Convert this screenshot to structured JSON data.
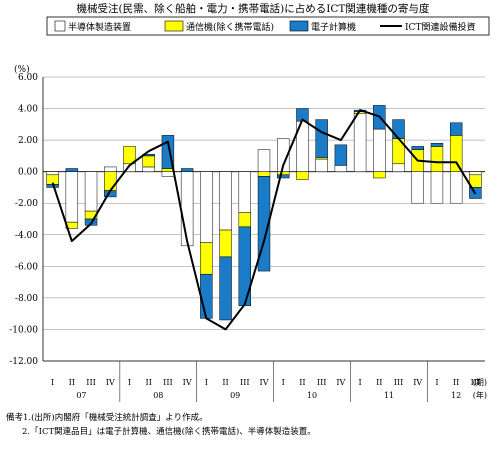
{
  "chart_data": {
    "type": "bar",
    "title": "機械受注(民需、除く船舶・電力・携帯電話)に占めるICT関連機種の寄与度",
    "ylabel": "(%)",
    "xlabel_period": "(期)",
    "xlabel_year": "(年)",
    "ylim": [
      -12,
      6
    ],
    "yticks": [
      "6.00",
      "4.00",
      "2.00",
      "0.00",
      "-2.00",
      "-4.00",
      "-6.00",
      "-8.00",
      "-10.00",
      "-12.00"
    ],
    "categories": [
      "I",
      "II",
      "III",
      "IV",
      "I",
      "II",
      "III",
      "IV",
      "I",
      "II",
      "III",
      "IV",
      "I",
      "II",
      "III",
      "IV",
      "I",
      "II",
      "III",
      "IV",
      "I",
      "II",
      "III"
    ],
    "years": [
      "07",
      "08",
      "09",
      "10",
      "11",
      "12"
    ],
    "legend_position": "top",
    "grid": true,
    "series": [
      {
        "name": "半導体製造装置",
        "kind": "bar",
        "color": "#ffffff",
        "values": [
          -0.2,
          -3.2,
          -2.5,
          0.3,
          0.5,
          0.3,
          -0.3,
          -4.7,
          -4.5,
          -3.7,
          -2.6,
          1.4,
          2.1,
          3.2,
          0.8,
          0.4,
          3.7,
          2.7,
          0.5,
          -2.0,
          -2.0,
          -2.0,
          -0.2
        ]
      },
      {
        "name": "通信機(除く携帯電話)",
        "kind": "bar",
        "color": "#ffff00",
        "values": [
          -0.6,
          -0.4,
          -0.5,
          -1.2,
          1.1,
          0.7,
          0.2,
          0.0,
          -2.0,
          -1.7,
          -0.9,
          -0.3,
          -0.2,
          -0.5,
          0.1,
          0.0,
          0.1,
          -0.4,
          1.6,
          1.4,
          1.6,
          2.3,
          -0.8
        ]
      },
      {
        "name": "電子計算機",
        "kind": "bar",
        "color": "#1a7cc8",
        "values": [
          -0.2,
          0.2,
          -0.4,
          -0.4,
          0.0,
          0.1,
          2.1,
          0.2,
          -2.8,
          -4.0,
          -5.0,
          -6.0,
          -0.2,
          0.8,
          2.4,
          1.3,
          0.1,
          1.5,
          1.2,
          0.2,
          0.2,
          0.8,
          -0.7
        ]
      },
      {
        "name": "ICT関連設備投資",
        "kind": "line",
        "color": "#000000",
        "values": [
          -0.7,
          -4.4,
          -3.3,
          -1.2,
          0.4,
          1.3,
          1.9,
          -4.4,
          -9.3,
          -10.0,
          -8.4,
          -4.4,
          0.4,
          3.3,
          2.5,
          2.0,
          3.9,
          3.5,
          2.1,
          0.7,
          0.6,
          0.6,
          -1.4
        ]
      }
    ]
  },
  "notes": [
    "備考1.(出所)内閣府「機械受注統計調査」より作成。",
    "2.「ICT関連品目」は電子計算機、通信機(除く携帯電話)、半導体製造装置。"
  ]
}
